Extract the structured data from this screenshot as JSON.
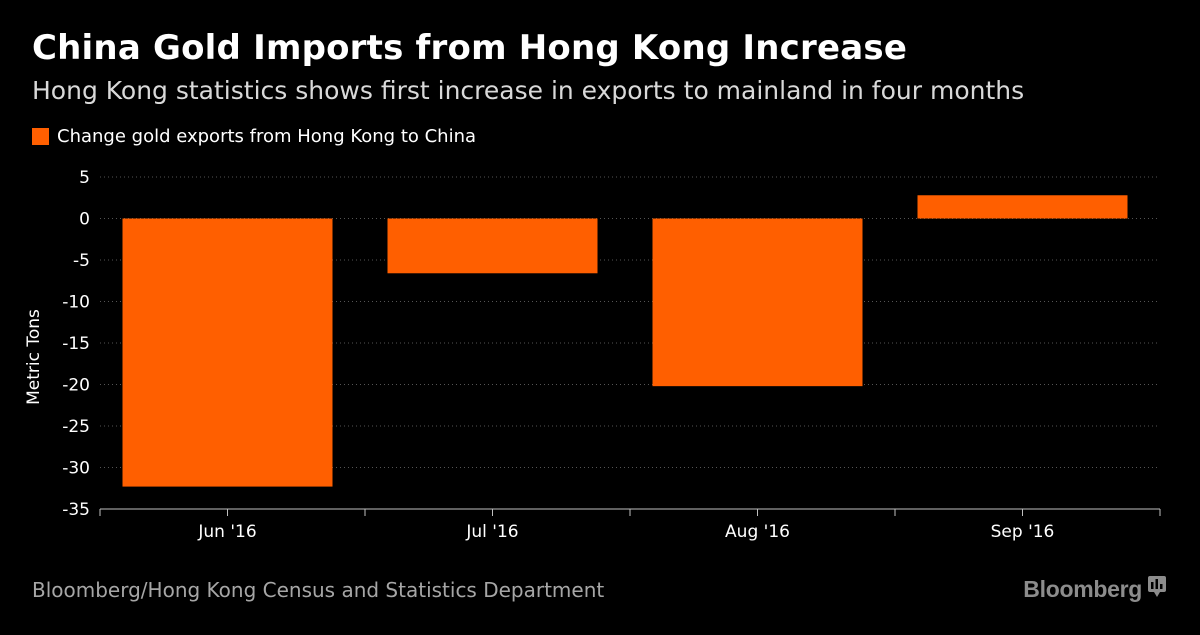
{
  "title": "China Gold Imports from Hong Kong Increase",
  "subtitle": "Hong Kong statistics shows first increase in exports to mainland in four months",
  "legend_label": "Change gold exports from Hong Kong to China",
  "source": "Bloomberg/Hong Kong Census and Statistics Department",
  "brand": "Bloomberg",
  "colors": {
    "background": "#000000",
    "bar": "#ff5f00",
    "grid": "#555555",
    "text": "#ffffff"
  },
  "chart_data": {
    "type": "bar",
    "categories": [
      "Jun '16",
      "Jul '16",
      "Aug '16",
      "Sep '16"
    ],
    "series": [
      {
        "name": "Change gold exports from Hong Kong to China",
        "values": [
          -32.3,
          -6.6,
          -20.2,
          2.8
        ]
      }
    ],
    "ylabel": "Metric Tons",
    "xlabel": "",
    "ylim": [
      -35,
      5
    ],
    "yticks": [
      "5",
      "0",
      "-5",
      "-10",
      "-15",
      "-20",
      "-25",
      "-30",
      "-35"
    ],
    "ytick_values": [
      5,
      0,
      -5,
      -10,
      -15,
      -20,
      -25,
      -30,
      -35
    ],
    "grid": true,
    "legend_position": "top-left"
  }
}
